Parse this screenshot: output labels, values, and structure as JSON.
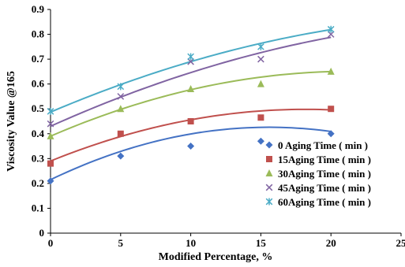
{
  "chart_data": {
    "type": "scatter",
    "xlabel": "Modified Percentage, %",
    "ylabel": "Viscosity Value @165",
    "xlim": [
      0,
      25
    ],
    "ylim": [
      0,
      0.9
    ],
    "xticks": [
      0,
      5,
      10,
      15,
      20,
      25
    ],
    "yticks": [
      0,
      0.1,
      0.2,
      0.3,
      0.4,
      0.5,
      0.6,
      0.7,
      0.8,
      0.9
    ],
    "xtick_labels": [
      "0",
      "5",
      "10",
      "15",
      "20",
      "25"
    ],
    "ytick_labels": [
      "0",
      "0.1",
      "0.2",
      "0.3",
      "0.4",
      "0.5",
      "0.6",
      "0.7",
      "0.8",
      "0.9"
    ],
    "grid": false,
    "legend_position": "bottom-right",
    "trendlines": true,
    "series": [
      {
        "name": "0 Aging Time ( min )",
        "color": "#4472C4",
        "marker": "diamond",
        "x": [
          0,
          5,
          10,
          15,
          20
        ],
        "y": [
          0.21,
          0.31,
          0.35,
          0.37,
          0.4
        ],
        "trend": [
          0.215,
          0.0271,
          -0.00087
        ]
      },
      {
        "name": "15Aging Time ( min )",
        "color": "#C0504D",
        "marker": "square",
        "x": [
          0,
          5,
          10,
          15,
          20
        ],
        "y": [
          0.28,
          0.4,
          0.45,
          0.465,
          0.5
        ],
        "trend": [
          0.29,
          0.0229,
          -0.00063
        ]
      },
      {
        "name": "30Aging Time ( min )",
        "color": "#9BBB59",
        "marker": "triangle",
        "x": [
          0,
          5,
          10,
          15,
          20
        ],
        "y": [
          0.39,
          0.5,
          0.58,
          0.6,
          0.65
        ],
        "trend": [
          0.39,
          0.0244,
          -0.00057
        ]
      },
      {
        "name": "45Aging Time ( min )",
        "color": "#8064A2",
        "marker": "x",
        "x": [
          0,
          5,
          10,
          15,
          20
        ],
        "y": [
          0.44,
          0.55,
          0.69,
          0.7,
          0.8
        ],
        "trend": [
          0.43,
          0.0253,
          -0.00037
        ]
      },
      {
        "name": "60Aging Time ( min )",
        "color": "#4BACC6",
        "marker": "star",
        "x": [
          0,
          5,
          10,
          15,
          20
        ],
        "y": [
          0.49,
          0.59,
          0.71,
          0.75,
          0.82
        ],
        "trend": [
          0.487,
          0.024,
          -0.00037
        ]
      }
    ]
  }
}
